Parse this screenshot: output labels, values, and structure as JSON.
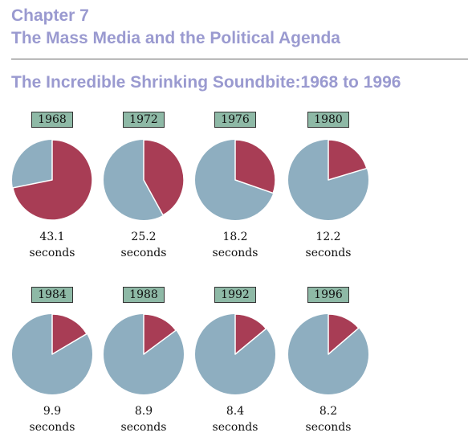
{
  "header": {
    "chapter": "Chapter 7",
    "subtitle": "The Mass Media and the Political Agenda"
  },
  "chart_data": {
    "type": "pie",
    "title": "The Incredible Shrinking Soundbite:1968 to 1996",
    "unit": "seconds",
    "categories": [
      "1968",
      "1972",
      "1976",
      "1980",
      "1984",
      "1988",
      "1992",
      "1996"
    ],
    "values": [
      43.1,
      25.2,
      18.2,
      12.2,
      9.9,
      8.9,
      8.4,
      8.2
    ],
    "slice_scale_seconds": 60,
    "colors": {
      "soundbite": "#a83d55",
      "remainder": "#8eaec0",
      "year_box": "#8eb9a6"
    }
  }
}
